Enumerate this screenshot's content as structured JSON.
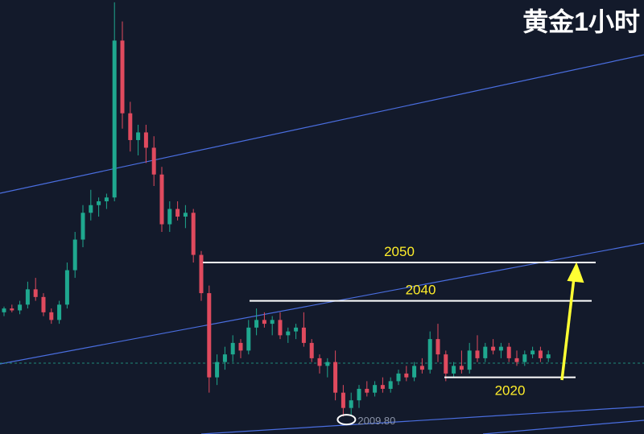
{
  "chart_data": {
    "type": "candlestick",
    "title": "黄金1小时",
    "ylim": [
      2005.2,
      2118.6
    ],
    "up_color": "#1fa88f",
    "down_color": "#e04a5e",
    "open": [
      2037,
      2038,
      2037.5,
      2039,
      2043,
      2041,
      2037,
      2035,
      2039,
      2048,
      2056,
      2063,
      2065,
      2066,
      2067,
      2108,
      2089,
      2082,
      2084,
      2080,
      2073,
      2060,
      2064,
      2062,
      2063,
      2052,
      2042,
      2020,
      2024,
      2026,
      2029,
      2027,
      2033,
      2035,
      2034,
      2035,
      2031,
      2032,
      2033,
      2029,
      2025,
      2023,
      2024,
      2016,
      2012,
      2014,
      2017,
      2016,
      2018,
      2017,
      2019,
      2021,
      2020,
      2023,
      2022,
      2030,
      2026,
      2021,
      2023,
      2022,
      2027,
      2025,
      2028,
      2027,
      2028,
      2025,
      2024,
      2026,
      2027,
      2025
    ],
    "high": [
      2038.5,
      2039,
      2040,
      2045,
      2046,
      2042,
      2038,
      2040,
      2050,
      2058,
      2065,
      2069,
      2067,
      2068,
      2118,
      2113,
      2092,
      2086,
      2086,
      2083,
      2075,
      2066,
      2066,
      2065,
      2064,
      2053,
      2044,
      2026,
      2028,
      2031,
      2030,
      2035,
      2038,
      2037,
      2036,
      2037,
      2033,
      2034,
      2037,
      2030,
      2026,
      2025,
      2027,
      2018,
      2016,
      2018,
      2019,
      2019,
      2020,
      2020,
      2022,
      2023,
      2024,
      2025,
      2032,
      2034,
      2027,
      2024,
      2027,
      2029,
      2031,
      2029,
      2030,
      2029,
      2029,
      2027,
      2027,
      2028,
      2028,
      2027
    ],
    "low": [
      2036,
      2037,
      2036.5,
      2038,
      2040,
      2036,
      2034,
      2034,
      2038,
      2046,
      2054,
      2061,
      2062,
      2064,
      2066,
      2085,
      2079,
      2078,
      2076,
      2070,
      2058,
      2058,
      2061,
      2059,
      2050,
      2040,
      2016,
      2018,
      2022,
      2024,
      2025,
      2026,
      2031,
      2033,
      2031,
      2030,
      2029,
      2030,
      2028,
      2024,
      2021,
      2020,
      2014,
      2009.8,
      2010,
      2012,
      2015,
      2015,
      2016,
      2016,
      2018,
      2019,
      2019,
      2021,
      2021,
      2024,
      2019,
      2020,
      2021,
      2021,
      2024,
      2024,
      2026,
      2025,
      2024,
      2023,
      2023,
      2025,
      2024,
      2024
    ],
    "close": [
      2038,
      2037.5,
      2039,
      2043,
      2041,
      2037,
      2035,
      2039,
      2048,
      2056,
      2063,
      2065,
      2066,
      2067,
      2108,
      2089,
      2082,
      2084,
      2080,
      2073,
      2060,
      2064,
      2062,
      2063,
      2052,
      2042,
      2020,
      2024,
      2026,
      2029,
      2027,
      2033,
      2035,
      2034,
      2035,
      2031,
      2032,
      2033,
      2029,
      2025,
      2023,
      2024,
      2016,
      2012,
      2014,
      2017,
      2016,
      2018,
      2017,
      2019,
      2021,
      2020,
      2023,
      2022,
      2030,
      2026,
      2021,
      2023,
      2022,
      2027,
      2025,
      2028,
      2027,
      2028,
      2025,
      2024,
      2026,
      2027,
      2025,
      2026
    ],
    "levels": [
      2050,
      2040,
      2020
    ],
    "level_color": "#ffffff",
    "low_label": {
      "value": 2009.8,
      "label": "2009.80"
    }
  }
}
